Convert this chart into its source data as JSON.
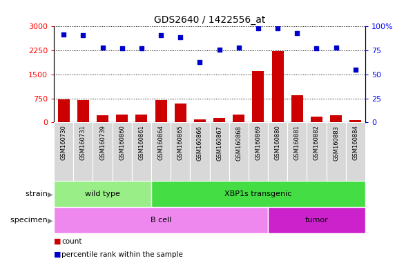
{
  "title": "GDS2640 / 1422556_at",
  "samples": [
    "GSM160730",
    "GSM160731",
    "GSM160739",
    "GSM160860",
    "GSM160861",
    "GSM160864",
    "GSM160865",
    "GSM160866",
    "GSM160867",
    "GSM160868",
    "GSM160869",
    "GSM160880",
    "GSM160881",
    "GSM160882",
    "GSM160883",
    "GSM160884"
  ],
  "counts": [
    710,
    700,
    230,
    235,
    235,
    700,
    580,
    85,
    130,
    240,
    1610,
    2230,
    840,
    190,
    230,
    80
  ],
  "percentiles": [
    92,
    91,
    78,
    77,
    77,
    91,
    89,
    63,
    76,
    78,
    98,
    98,
    93,
    77,
    78,
    55
  ],
  "ylim_left": [
    0,
    3000
  ],
  "ylim_right": [
    0,
    100
  ],
  "yticks_left": [
    0,
    750,
    1500,
    2250,
    3000
  ],
  "yticks_right": [
    0,
    25,
    50,
    75,
    100
  ],
  "bar_color": "#cc0000",
  "scatter_color": "#0000cc",
  "strain_groups": [
    {
      "label": "wild type",
      "start": 0,
      "end": 5,
      "color": "#99ee88"
    },
    {
      "label": "XBP1s transgenic",
      "start": 5,
      "end": 16,
      "color": "#44dd44"
    }
  ],
  "specimen_groups": [
    {
      "label": "B cell",
      "start": 0,
      "end": 11,
      "color": "#ee88ee"
    },
    {
      "label": "tumor",
      "start": 11,
      "end": 16,
      "color": "#cc22cc"
    }
  ],
  "strain_label": "strain",
  "specimen_label": "specimen",
  "legend_count_label": "count",
  "legend_pct_label": "percentile rank within the sample",
  "plot_bg_color": "#ffffff",
  "tick_bg_color": "#d8d8d8",
  "tick_label_color": "#000000",
  "grid_linestyle": "dotted",
  "grid_color": "#000000"
}
